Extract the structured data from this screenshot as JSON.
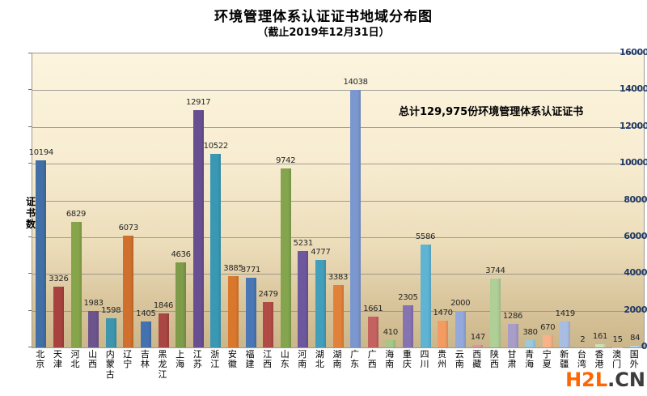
{
  "header": {
    "title": "环境管理体系认证证书地域分布图",
    "subtitle": "（截止2019年12月31日）"
  },
  "annotation": "总计129,975份环境管理体系认证证书",
  "watermark": {
    "primary": "H2L",
    "secondary": ".CN",
    "primary_color": "#ff6600",
    "secondary_color": "#3c3c3c"
  },
  "y_axis": {
    "title": "证书数",
    "tick_labels": [
      "0",
      "2000",
      "4000",
      "6000",
      "8000",
      "10000",
      "12000",
      "14000",
      "16000"
    ],
    "tick_label_color": "#1f3864"
  },
  "chart_data": {
    "type": "bar",
    "title": "环境管理体系认证证书地域分布图",
    "subtitle": "（截止2019年12月31日）",
    "xlabel": "",
    "ylabel": "证书数",
    "ylim": [
      0,
      16000
    ],
    "ystep": 2000,
    "grid": true,
    "legend": "none",
    "annotation": "总计129,975份环境管理体系认证证书",
    "total": 129975,
    "categories": [
      "北京",
      "天津",
      "河北",
      "山西",
      "内蒙古",
      "辽宁",
      "吉林",
      "黑龙江",
      "上海",
      "江苏",
      "浙江",
      "安徽",
      "福建",
      "江西",
      "山东",
      "河南",
      "湖北",
      "湖南",
      "广东",
      "广西",
      "海南",
      "重庆",
      "四川",
      "贵州",
      "云南",
      "西藏",
      "陕西",
      "甘肃",
      "青海",
      "宁夏",
      "新疆",
      "台湾",
      "香港",
      "澳门",
      "国外"
    ],
    "values": [
      10194,
      3326,
      6829,
      1983,
      1598,
      6073,
      1405,
      1846,
      4636,
      12917,
      10522,
      3885,
      3771,
      2479,
      9742,
      5231,
      4777,
      3383,
      14038,
      1661,
      410,
      2305,
      5586,
      1470,
      2000,
      147,
      3744,
      1286,
      380,
      670,
      1419,
      2,
      161,
      15,
      84
    ],
    "colors": [
      "#416FA6",
      "#A8423F",
      "#86A44A",
      "#6E548D",
      "#3D96AE",
      "#D0702E",
      "#4472B0",
      "#AA4643",
      "#7E9B49",
      "#684F91",
      "#3998B4",
      "#D9782D",
      "#4A77B5",
      "#B24B46",
      "#84A54E",
      "#6D589E",
      "#429FBB",
      "#E2823A",
      "#7B97CF",
      "#C4625F",
      "#A6C785",
      "#8574B1",
      "#5FB3D3",
      "#F49B62",
      "#93A9DC",
      "#DE93A2",
      "#AFCF97",
      "#A89DC8",
      "#99C9DD",
      "#F8B288",
      "#A9BCE2",
      "#E8AFBA",
      "#CBDFB8",
      "#C3BBDB",
      "#B9D3E6"
    ],
    "plot_background": {
      "top": "#fcf4de",
      "bottom": "#cbb68b"
    },
    "gridline_color": "#8f8f87"
  }
}
